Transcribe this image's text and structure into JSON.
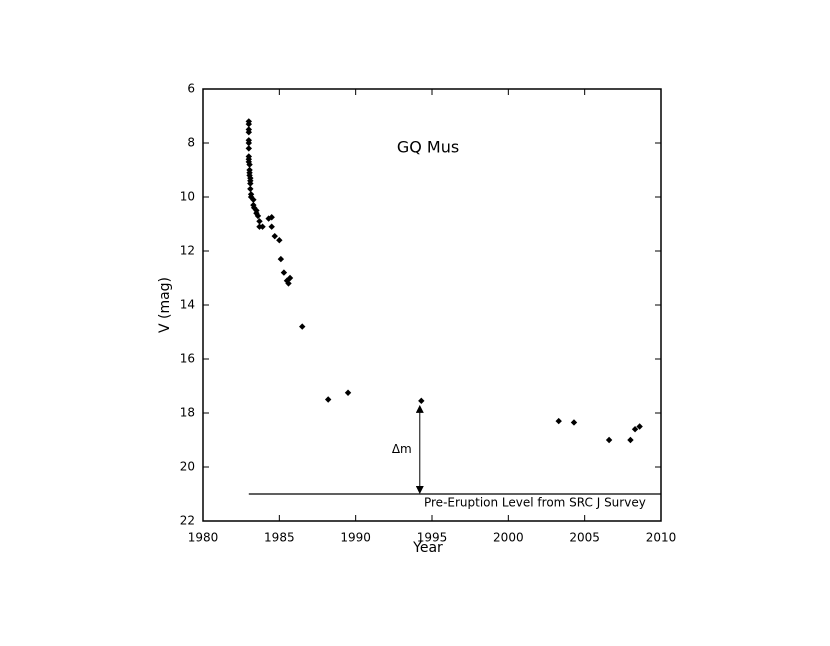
{
  "chart_data": {
    "type": "scatter",
    "title": "GQ Mus",
    "x_label": "Year",
    "y_label": "V (mag)",
    "xlim": [
      1980,
      2010
    ],
    "xticks": [
      1980,
      1985,
      1990,
      1995,
      2000,
      2005,
      2010
    ],
    "ylim": [
      6,
      22
    ],
    "yticks": [
      6,
      8,
      10,
      12,
      14,
      16,
      18,
      20,
      22
    ],
    "y_inverted": true,
    "color": "#000000",
    "x": [
      1983.0,
      1983.0,
      1983.0,
      1983.0,
      1983.0,
      1983.0,
      1983.0,
      1983.0,
      1983.0,
      1983.0,
      1983.05,
      1983.05,
      1983.05,
      1983.05,
      1983.1,
      1983.1,
      1983.1,
      1983.1,
      1983.15,
      1983.15,
      1983.3,
      1983.3,
      1983.35,
      1983.5,
      1983.5,
      1983.6,
      1983.7,
      1983.7,
      1983.9,
      1984.3,
      1984.5,
      1984.5,
      1984.7,
      1985.0,
      1985.1,
      1985.3,
      1985.5,
      1985.6,
      1985.7,
      1986.5,
      1988.2,
      1989.5,
      1994.3,
      2003.3,
      2004.3,
      2006.6,
      2008.0,
      2008.3,
      2008.6
    ],
    "values": [
      7.2,
      7.3,
      7.5,
      7.6,
      7.9,
      8.0,
      8.2,
      8.5,
      8.6,
      8.7,
      8.8,
      9.0,
      9.1,
      9.2,
      9.3,
      9.4,
      9.5,
      9.7,
      9.9,
      10.0,
      10.1,
      10.3,
      10.4,
      10.5,
      10.6,
      10.7,
      10.9,
      11.1,
      11.1,
      10.8,
      10.75,
      11.1,
      11.45,
      11.6,
      12.3,
      12.8,
      13.1,
      13.2,
      13.0,
      14.8,
      17.5,
      17.25,
      17.55,
      18.3,
      18.35,
      19.0,
      19.0,
      18.6,
      18.5
    ],
    "reference_line": {
      "y": 21,
      "x": [
        1983,
        2010
      ],
      "label": "Pre-Eruption Level from SRC J Survey"
    },
    "arrow": {
      "x": 1994.2,
      "y": [
        17.7,
        21
      ],
      "label": "Δm"
    }
  }
}
